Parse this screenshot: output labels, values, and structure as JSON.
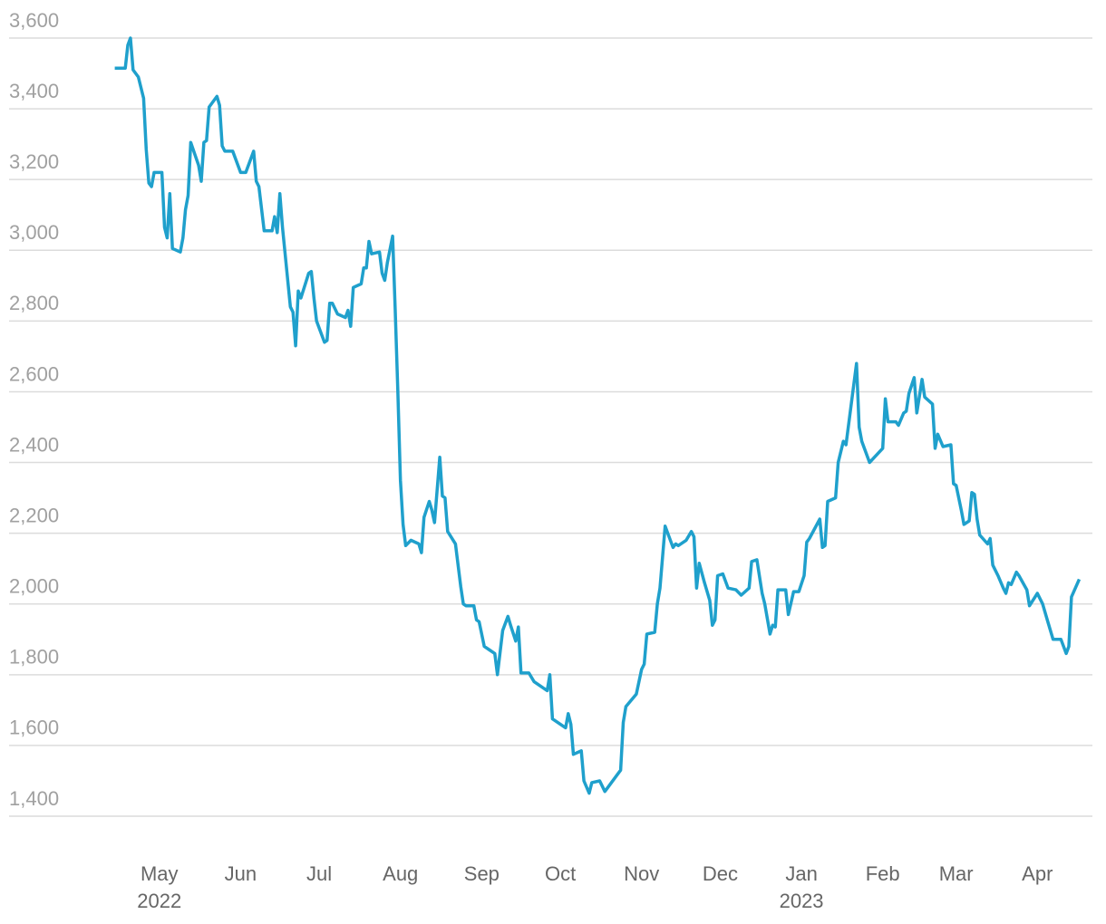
{
  "chart_data": {
    "type": "line",
    "color": "#1fa0cc",
    "grid": true,
    "x": [
      "2022-04-14",
      "2022-04-18",
      "2022-04-19",
      "2022-04-20",
      "2022-04-21",
      "2022-04-23",
      "2022-04-25",
      "2022-04-26",
      "2022-04-27",
      "2022-04-28",
      "2022-04-29",
      "2022-05-02",
      "2022-05-03",
      "2022-05-04",
      "2022-05-05",
      "2022-05-06",
      "2022-05-09",
      "2022-05-10",
      "2022-05-11",
      "2022-05-12",
      "2022-05-13",
      "2022-05-16",
      "2022-05-17",
      "2022-05-18",
      "2022-05-19",
      "2022-05-20",
      "2022-05-23",
      "2022-05-24",
      "2022-05-25",
      "2022-05-26",
      "2022-05-29",
      "2022-06-01",
      "2022-06-03",
      "2022-06-06",
      "2022-06-07",
      "2022-06-08",
      "2022-06-10",
      "2022-06-13",
      "2022-06-14",
      "2022-06-15",
      "2022-06-16",
      "2022-06-17",
      "2022-06-20",
      "2022-06-21",
      "2022-06-22",
      "2022-06-23",
      "2022-06-24",
      "2022-06-27",
      "2022-06-28",
      "2022-06-29",
      "2022-06-30",
      "2022-07-03",
      "2022-07-04",
      "2022-07-05",
      "2022-07-06",
      "2022-07-08",
      "2022-07-11",
      "2022-07-12",
      "2022-07-13",
      "2022-07-14",
      "2022-07-17",
      "2022-07-18",
      "2022-07-19",
      "2022-07-20",
      "2022-07-21",
      "2022-07-24",
      "2022-07-25",
      "2022-07-26",
      "2022-07-27",
      "2022-07-29",
      "2022-07-30",
      "2022-07-31",
      "2022-08-01",
      "2022-08-02",
      "2022-08-03",
      "2022-08-05",
      "2022-08-08",
      "2022-08-09",
      "2022-08-10",
      "2022-08-12",
      "2022-08-13",
      "2022-08-14",
      "2022-08-16",
      "2022-08-17",
      "2022-08-18",
      "2022-08-19",
      "2022-08-22",
      "2022-08-24",
      "2022-08-25",
      "2022-08-26",
      "2022-08-29",
      "2022-08-30",
      "2022-08-31",
      "2022-09-02",
      "2022-09-04",
      "2022-09-06",
      "2022-09-07",
      "2022-09-09",
      "2022-09-11",
      "2022-09-12",
      "2022-09-14",
      "2022-09-15",
      "2022-09-16",
      "2022-09-19",
      "2022-09-21",
      "2022-09-26",
      "2022-09-27",
      "2022-09-28",
      "2022-10-03",
      "2022-10-04",
      "2022-10-05",
      "2022-10-06",
      "2022-10-09",
      "2022-10-10",
      "2022-10-12",
      "2022-10-13",
      "2022-10-16",
      "2022-10-18",
      "2022-10-19",
      "2022-10-23",
      "2022-10-24",
      "2022-10-25",
      "2022-10-26",
      "2022-10-30",
      "2022-11-01",
      "2022-11-02",
      "2022-11-03",
      "2022-11-06",
      "2022-11-07",
      "2022-11-08",
      "2022-11-10",
      "2022-11-13",
      "2022-11-14",
      "2022-11-15",
      "2022-11-18",
      "2022-11-20",
      "2022-11-21",
      "2022-11-22",
      "2022-11-23",
      "2022-11-25",
      "2022-11-27",
      "2022-11-28",
      "2022-11-29",
      "2022-11-30",
      "2022-12-02",
      "2022-12-04",
      "2022-12-07",
      "2022-12-09",
      "2022-12-12",
      "2022-12-13",
      "2022-12-15",
      "2022-12-17",
      "2022-12-18",
      "2022-12-20",
      "2022-12-21",
      "2022-12-22",
      "2022-12-23",
      "2022-12-26",
      "2022-12-27",
      "2022-12-29",
      "2022-12-31",
      "2023-01-02",
      "2023-01-03",
      "2023-01-04",
      "2023-01-08",
      "2023-01-09",
      "2023-01-10",
      "2023-01-11",
      "2023-01-14",
      "2023-01-15",
      "2023-01-17",
      "2023-01-18",
      "2023-01-22",
      "2023-01-23",
      "2023-01-24",
      "2023-01-27",
      "2023-02-01",
      "2023-02-02",
      "2023-02-03",
      "2023-02-06",
      "2023-02-07",
      "2023-02-09",
      "2023-02-10",
      "2023-02-11",
      "2023-02-13",
      "2023-02-14",
      "2023-02-16",
      "2023-02-17",
      "2023-02-20",
      "2023-02-21",
      "2023-02-22",
      "2023-02-24",
      "2023-02-27",
      "2023-02-28",
      "2023-03-01",
      "2023-03-03",
      "2023-03-04",
      "2023-03-06",
      "2023-03-07",
      "2023-03-08",
      "2023-03-09",
      "2023-03-10",
      "2023-03-13",
      "2023-03-14",
      "2023-03-15",
      "2023-03-17",
      "2023-03-19",
      "2023-03-20",
      "2023-03-21",
      "2023-03-22",
      "2023-03-24",
      "2023-03-25",
      "2023-03-28",
      "2023-03-29",
      "2023-04-01",
      "2023-04-03",
      "2023-04-05",
      "2023-04-07",
      "2023-04-10",
      "2023-04-12",
      "2023-04-13",
      "2023-04-14",
      "2023-04-17"
    ],
    "values": [
      3515,
      3515,
      3580,
      3600,
      3510,
      3490,
      3430,
      3285,
      3190,
      3180,
      3220,
      3220,
      3065,
      3035,
      3160,
      3005,
      2995,
      3035,
      3115,
      3155,
      3305,
      3240,
      3195,
      3305,
      3310,
      3405,
      3435,
      3410,
      3295,
      3280,
      3280,
      3220,
      3220,
      3280,
      3195,
      3180,
      3055,
      3055,
      3095,
      3050,
      3160,
      3065,
      2840,
      2825,
      2730,
      2885,
      2865,
      2935,
      2940,
      2865,
      2800,
      2740,
      2745,
      2850,
      2850,
      2820,
      2810,
      2830,
      2785,
      2895,
      2905,
      2950,
      2950,
      3025,
      2990,
      2995,
      2935,
      2915,
      2965,
      3040,
      2835,
      2605,
      2350,
      2225,
      2165,
      2180,
      2170,
      2145,
      2245,
      2290,
      2265,
      2230,
      2415,
      2305,
      2300,
      2205,
      2170,
      2050,
      2000,
      1995,
      1995,
      1955,
      1950,
      1880,
      1870,
      1860,
      1800,
      1925,
      1965,
      1940,
      1895,
      1935,
      1805,
      1805,
      1780,
      1755,
      1800,
      1675,
      1650,
      1690,
      1660,
      1575,
      1585,
      1500,
      1465,
      1495,
      1500,
      1470,
      1480,
      1520,
      1530,
      1665,
      1710,
      1745,
      1815,
      1830,
      1915,
      1920,
      2000,
      2045,
      2220,
      2160,
      2170,
      2165,
      2180,
      2205,
      2190,
      2045,
      2115,
      2060,
      2010,
      1940,
      1955,
      2080,
      2085,
      2045,
      2040,
      2025,
      2045,
      2120,
      2125,
      2030,
      2000,
      1915,
      1940,
      1935,
      2040,
      2040,
      1970,
      2035,
      2035,
      2080,
      2175,
      2185,
      2240,
      2160,
      2165,
      2290,
      2300,
      2400,
      2460,
      2450,
      2680,
      2500,
      2460,
      2400,
      2440,
      2580,
      2515,
      2515,
      2505,
      2540,
      2545,
      2595,
      2640,
      2540,
      2635,
      2585,
      2565,
      2440,
      2480,
      2445,
      2450,
      2340,
      2335,
      2265,
      2225,
      2235,
      2315,
      2310,
      2240,
      2195,
      2170,
      2185,
      2110,
      2080,
      2045,
      2030,
      2060,
      2055,
      2090,
      2080,
      2040,
      1995,
      2030,
      2000,
      1950,
      1900,
      1900,
      1860,
      1880,
      2020,
      2070
    ],
    "xlim": [
      "2022-04-01",
      "2023-04-22"
    ],
    "xticks": [
      {
        "value": "2022-05-01",
        "label": "May",
        "year": "2022"
      },
      {
        "value": "2022-06-01",
        "label": "Jun"
      },
      {
        "value": "2022-07-01",
        "label": "Jul"
      },
      {
        "value": "2022-08-01",
        "label": "Aug"
      },
      {
        "value": "2022-09-01",
        "label": "Sep"
      },
      {
        "value": "2022-10-01",
        "label": "Oct"
      },
      {
        "value": "2022-11-01",
        "label": "Nov"
      },
      {
        "value": "2022-12-01",
        "label": "Dec"
      },
      {
        "value": "2023-01-01",
        "label": "Jan",
        "year": "2023"
      },
      {
        "value": "2023-02-01",
        "label": "Feb"
      },
      {
        "value": "2023-03-01",
        "label": "Mar"
      },
      {
        "value": "2023-04-01",
        "label": "Apr"
      }
    ],
    "ylim": [
      1400,
      3600
    ],
    "yticks": [
      {
        "value": 1400,
        "label": "1,400"
      },
      {
        "value": 1600,
        "label": "1,600"
      },
      {
        "value": 1800,
        "label": "1,800"
      },
      {
        "value": 2000,
        "label": "2,000"
      },
      {
        "value": 2200,
        "label": "2,200"
      },
      {
        "value": 2400,
        "label": "2,400"
      },
      {
        "value": 2600,
        "label": "2,600"
      },
      {
        "value": 2800,
        "label": "2,800"
      },
      {
        "value": 3000,
        "label": "3,000"
      },
      {
        "value": 3200,
        "label": "3,200"
      },
      {
        "value": 3400,
        "label": "3,400"
      },
      {
        "value": 3600,
        "label": "3,600"
      }
    ]
  }
}
